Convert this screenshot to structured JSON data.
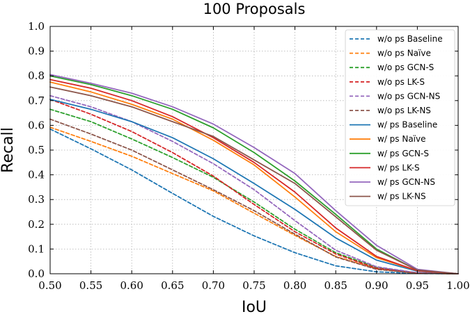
{
  "chart_data": {
    "type": "line",
    "title": "100 Proposals",
    "xlabel": "IoU",
    "ylabel": "Recall",
    "xlim": [
      0.5,
      1.0
    ],
    "ylim": [
      0.0,
      1.0
    ],
    "x_ticks": [
      "0.50",
      "0.55",
      "0.60",
      "0.65",
      "0.70",
      "0.75",
      "0.80",
      "0.85",
      "0.90",
      "0.95",
      "1.00"
    ],
    "y_ticks": [
      "0.0",
      "0.1",
      "0.2",
      "0.3",
      "0.4",
      "0.5",
      "0.6",
      "0.7",
      "0.8",
      "0.9",
      "1.0"
    ],
    "grid": true,
    "legend_position": "top-right",
    "x": [
      0.5,
      0.55,
      0.6,
      0.65,
      0.7,
      0.75,
      0.8,
      0.85,
      0.9,
      0.95,
      1.0
    ],
    "series": [
      {
        "name": "w/o ps Baseline",
        "color": "#1f77b4",
        "dashed": true,
        "values": [
          0.585,
          0.505,
          0.42,
          0.325,
          0.232,
          0.153,
          0.085,
          0.032,
          0.008,
          0.001,
          0.0
        ]
      },
      {
        "name": "w/o ps Naïve",
        "color": "#ff7f0e",
        "dashed": true,
        "values": [
          0.592,
          0.535,
          0.475,
          0.405,
          0.335,
          0.245,
          0.155,
          0.07,
          0.02,
          0.002,
          0.0
        ]
      },
      {
        "name": "w/o ps GCN-S",
        "color": "#2ca02c",
        "dashed": true,
        "values": [
          0.665,
          0.615,
          0.545,
          0.47,
          0.39,
          0.29,
          0.18,
          0.085,
          0.025,
          0.003,
          0.0
        ]
      },
      {
        "name": "w/o ps LK-S",
        "color": "#d62728",
        "dashed": true,
        "values": [
          0.705,
          0.645,
          0.575,
          0.49,
          0.395,
          0.28,
          0.17,
          0.08,
          0.022,
          0.003,
          0.0
        ]
      },
      {
        "name": "w/o ps GCN-NS",
        "color": "#9467bd",
        "dashed": true,
        "values": [
          0.72,
          0.675,
          0.615,
          0.535,
          0.445,
          0.34,
          0.215,
          0.095,
          0.028,
          0.004,
          0.0
        ]
      },
      {
        "name": "w/o ps LK-NS",
        "color": "#8c564b",
        "dashed": true,
        "values": [
          0.625,
          0.565,
          0.5,
          0.42,
          0.34,
          0.255,
          0.16,
          0.068,
          0.018,
          0.002,
          0.0
        ]
      },
      {
        "name": "w/ ps Baseline",
        "color": "#1f77b4",
        "dashed": false,
        "values": [
          0.705,
          0.665,
          0.615,
          0.55,
          0.465,
          0.365,
          0.26,
          0.145,
          0.055,
          0.01,
          0.0
        ]
      },
      {
        "name": "w/ ps Naïve",
        "color": "#ff7f0e",
        "dashed": false,
        "values": [
          0.775,
          0.735,
          0.685,
          0.625,
          0.54,
          0.44,
          0.31,
          0.17,
          0.065,
          0.012,
          0.0
        ]
      },
      {
        "name": "w/ ps GCN-S",
        "color": "#2ca02c",
        "dashed": false,
        "values": [
          0.8,
          0.765,
          0.72,
          0.665,
          0.59,
          0.49,
          0.375,
          0.24,
          0.1,
          0.014,
          0.0
        ]
      },
      {
        "name": "w/ ps LK-S",
        "color": "#d62728",
        "dashed": false,
        "values": [
          0.785,
          0.75,
          0.7,
          0.635,
          0.55,
          0.45,
          0.33,
          0.185,
          0.07,
          0.012,
          0.0
        ]
      },
      {
        "name": "w/ ps GCN-NS",
        "color": "#9467bd",
        "dashed": false,
        "values": [
          0.805,
          0.77,
          0.73,
          0.675,
          0.605,
          0.51,
          0.405,
          0.255,
          0.115,
          0.018,
          0.0
        ]
      },
      {
        "name": "w/ ps LK-NS",
        "color": "#8c564b",
        "dashed": false,
        "values": [
          0.755,
          0.72,
          0.675,
          0.615,
          0.555,
          0.46,
          0.365,
          0.23,
          0.095,
          0.015,
          0.0
        ]
      }
    ]
  }
}
